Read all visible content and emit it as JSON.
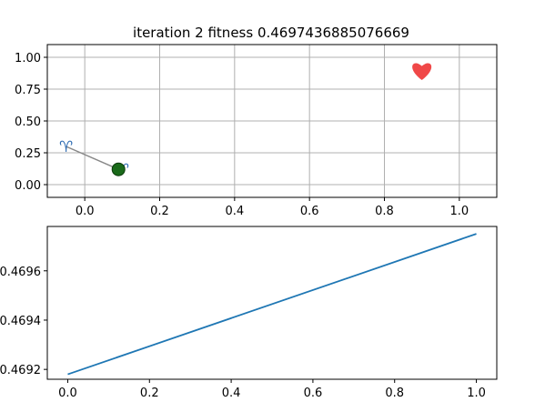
{
  "chart_data": [
    {
      "type": "scatter",
      "title": "iteration 2 fitness 0.4697436885076669",
      "xlabel": "",
      "ylabel": "",
      "xlim": [
        -0.1,
        1.1
      ],
      "ylim": [
        -0.1,
        1.1
      ],
      "x_ticks": [
        0.0,
        0.2,
        0.4,
        0.6,
        0.8,
        1.0
      ],
      "x_tick_labels": [
        "0.0",
        "0.2",
        "0.4",
        "0.6",
        "0.8",
        "1.0"
      ],
      "y_ticks": [
        0.0,
        0.25,
        0.5,
        0.75,
        1.0
      ],
      "y_tick_labels": [
        "0.00",
        "0.25",
        "0.50",
        "0.75",
        "1.00"
      ],
      "grid": true,
      "markers": [
        {
          "kind": "aries-symbol",
          "glyph": "♈",
          "x": -0.05,
          "y": 0.3,
          "color": "#2f6db3"
        },
        {
          "kind": "aries-symbol",
          "glyph": "♈",
          "x": 0.1,
          "y": 0.12,
          "color": "#2f6db3"
        },
        {
          "kind": "circle",
          "x": 0.09,
          "y": 0.12,
          "color": "#1a6a1a"
        },
        {
          "kind": "heart",
          "x": 0.9,
          "y": 0.9,
          "color": "#f04848"
        }
      ],
      "path": {
        "x": [
          -0.05,
          0.09
        ],
        "y": [
          0.3,
          0.12
        ],
        "color": "#888888"
      }
    },
    {
      "type": "line",
      "title": "",
      "xlabel": "",
      "ylabel": "",
      "xlim": [
        -0.05,
        1.05
      ],
      "ylim": [
        0.46916,
        0.46978
      ],
      "x_ticks": [
        0.0,
        0.2,
        0.4,
        0.6,
        0.8,
        1.0
      ],
      "x_tick_labels": [
        "0.0",
        "0.2",
        "0.4",
        "0.6",
        "0.8",
        "1.0"
      ],
      "y_ticks": [
        0.4692,
        0.4694,
        0.4696
      ],
      "y_tick_labels": [
        "0.4692",
        "0.4694",
        "0.4696"
      ],
      "grid": false,
      "series": [
        {
          "x": [
            0,
            1
          ],
          "values": [
            0.46918,
            0.46975
          ],
          "color": "#1f77b4"
        }
      ]
    }
  ]
}
